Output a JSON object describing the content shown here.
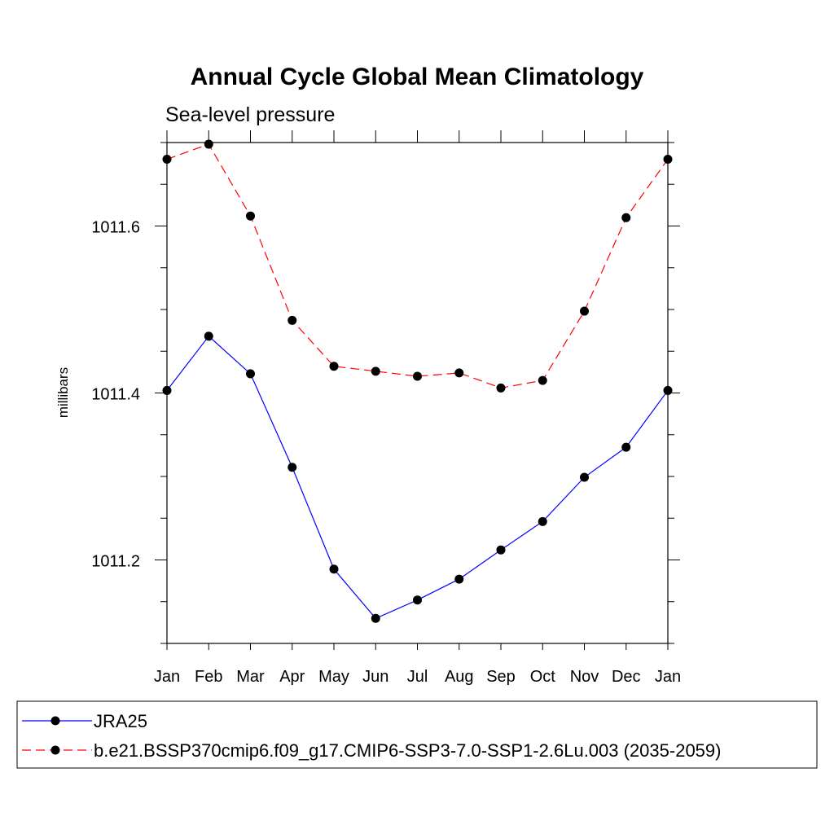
{
  "chart_data": {
    "type": "line",
    "title": "Annual Cycle Global Mean Climatology",
    "subtitle": "Sea-level pressure",
    "xlabel": "",
    "ylabel": "millibars",
    "categories": [
      "Jan",
      "Feb",
      "Mar",
      "Apr",
      "May",
      "Jun",
      "Jul",
      "Aug",
      "Sep",
      "Oct",
      "Nov",
      "Dec",
      "Jan"
    ],
    "ylim": [
      1011.1,
      1011.7
    ],
    "yticks": [
      1011.2,
      1011.4,
      1011.6
    ],
    "ytick_labels": [
      "1011.2",
      "1011.4",
      "1011.6"
    ],
    "legend_position": "bottom",
    "series": [
      {
        "name": "JRA25",
        "color": "#0000ff",
        "dash": "solid",
        "marker": "filled-circle",
        "values": [
          1011.403,
          1011.468,
          1011.423,
          1011.311,
          1011.189,
          1011.13,
          1011.152,
          1011.177,
          1011.212,
          1011.246,
          1011.299,
          1011.335,
          1011.403
        ]
      },
      {
        "name": "b.e21.BSSP370cmip6.f09_g17.CMIP6-SSP3-7.0-SSP1-2.6Lu.003 (2035-2059)",
        "color": "#ff0000",
        "dash": "dashed",
        "marker": "filled-circle",
        "values": [
          1011.68,
          1011.698,
          1011.612,
          1011.487,
          1011.432,
          1011.426,
          1011.42,
          1011.424,
          1011.406,
          1011.415,
          1011.498,
          1011.61,
          1011.68
        ]
      }
    ]
  }
}
